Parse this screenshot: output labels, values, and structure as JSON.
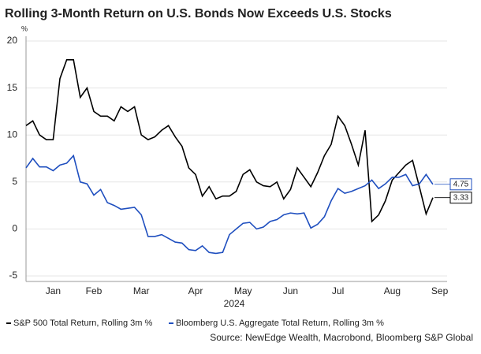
{
  "chart_data": {
    "type": "line",
    "title": "Rolling 3-Month Return on U.S. Bonds Now Exceeds U.S. Stocks",
    "y_unit": "%",
    "xlabel": "2024",
    "source": "Source: NewEdge Wealth, Macrobond, Bloomberg S&P Global",
    "categories": [
      null,
      null,
      null,
      null,
      "Jan",
      null,
      null,
      null,
      null,
      null,
      "Feb",
      null,
      null,
      null,
      null,
      null,
      null,
      "Mar",
      null,
      null,
      null,
      null,
      null,
      null,
      null,
      "Apr",
      null,
      null,
      null,
      null,
      null,
      null,
      "May",
      null,
      null,
      null,
      null,
      null,
      null,
      "Jun",
      null,
      null,
      null,
      null,
      null,
      null,
      "Jul",
      null,
      null,
      null,
      null,
      null,
      null,
      null,
      "Aug",
      null,
      null,
      null,
      null,
      null,
      null,
      "Sep"
    ],
    "series": [
      {
        "name": "S&P 500 Total Return, Rolling 3m %",
        "color": "#000000",
        "values": [
          11,
          11.5,
          10,
          9.5,
          9.5,
          16,
          18,
          18,
          14,
          15,
          12.5,
          12,
          12,
          11.5,
          13,
          12.5,
          13,
          10,
          9.5,
          9.8,
          10.5,
          11,
          9.8,
          8.8,
          6.5,
          5.8,
          3.5,
          4.5,
          3.2,
          3.5,
          3.5,
          4,
          5.8,
          6.3,
          5,
          4.6,
          4.5,
          5,
          3.2,
          4.2,
          6.5,
          5.5,
          4.5,
          6,
          7.8,
          9,
          12,
          11,
          9,
          6.8,
          10.5,
          0.8,
          1.5,
          3,
          5.2,
          6,
          6.8,
          7.3,
          4.5,
          1.6,
          3.33,
          null
        ]
      },
      {
        "name": "Bloomberg U.S. Aggregate Total Return, Rolling 3m %",
        "color": "#1f4fbf",
        "values": [
          6.5,
          7.5,
          6.6,
          6.6,
          6.2,
          6.8,
          7,
          7.8,
          5,
          4.8,
          3.6,
          4.2,
          2.8,
          2.5,
          2.1,
          2.2,
          2.3,
          1.5,
          -0.8,
          -0.8,
          -0.6,
          -1,
          -1.4,
          -1.5,
          -2.2,
          -2.3,
          -1.8,
          -2.5,
          -2.6,
          -2.5,
          -0.6,
          0,
          0.6,
          0.7,
          0,
          0.2,
          0.8,
          1,
          1.5,
          1.7,
          1.6,
          1.7,
          0.1,
          0.5,
          1.3,
          3,
          4.3,
          3.8,
          4,
          4.3,
          4.6,
          5.2,
          4.3,
          4.8,
          5.5,
          5.5,
          5.8,
          4.6,
          4.8,
          5.8,
          4.75,
          null
        ]
      }
    ],
    "ylim": [
      -5,
      20
    ],
    "yticks": [
      -5,
      0,
      5,
      10,
      15,
      20
    ],
    "grid": true
  }
}
